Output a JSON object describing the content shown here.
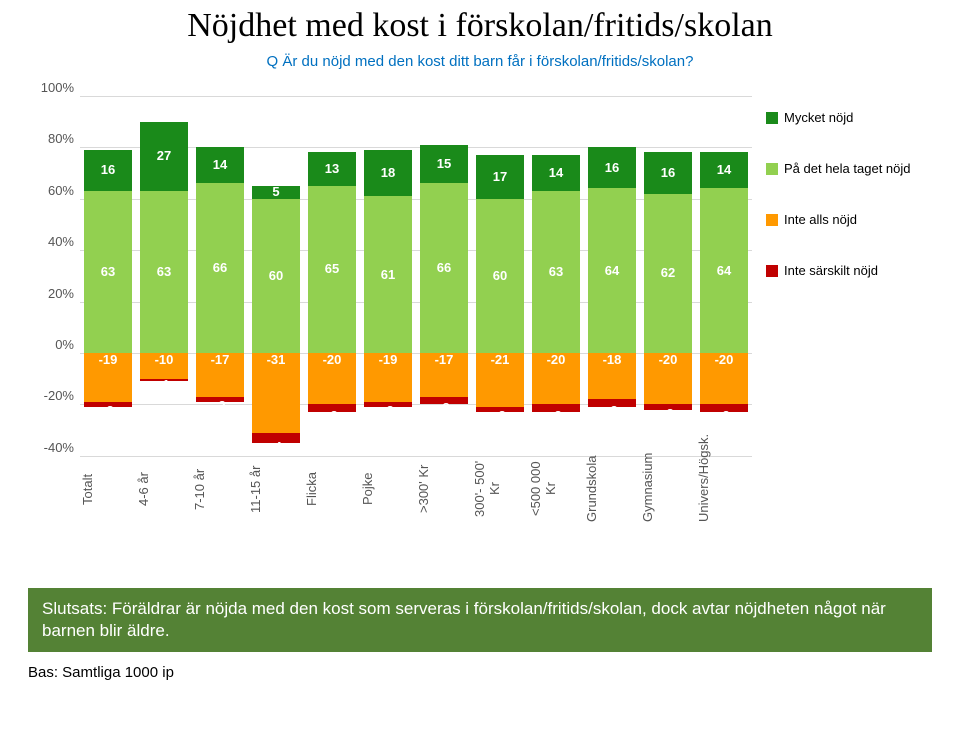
{
  "title": "Nöjdhet med kost i\nförskolan/fritids/skolan",
  "subtitle": "Q Är du nöjd med den kost ditt barn får i förskolan/fritids/skolan?",
  "chart": {
    "type": "stacked-bar-diverging",
    "ylim": [
      -40,
      100
    ],
    "yticks": [
      -40,
      -20,
      0,
      20,
      40,
      60,
      80,
      100
    ],
    "ytick_labels": [
      "-40%",
      "-20%",
      "0%",
      "20%",
      "40%",
      "60%",
      "80%",
      "100%"
    ],
    "grid_color": "#d9d9d9",
    "categories": [
      "Totalt",
      "4-6 år",
      "7-10 år",
      "11-15 år",
      "Flicka",
      "Pojke",
      ">300' Kr",
      "300'- 500' Kr",
      "<500 000 Kr",
      "Grundskola",
      "Gymnasium",
      "Univers/Högsk."
    ],
    "series": [
      {
        "name": "Mycket nöjd",
        "color": "#1a8a1a",
        "pos": "top",
        "values": [
          16,
          27,
          14,
          5,
          13,
          18,
          15,
          17,
          14,
          16,
          16,
          14
        ]
      },
      {
        "name": "På det hela taget nöjd",
        "color": "#92d050",
        "pos": "top",
        "values": [
          63,
          63,
          66,
          60,
          65,
          61,
          66,
          60,
          63,
          64,
          62,
          64
        ]
      },
      {
        "name": "Inte alls nöjd",
        "color": "#ff9900",
        "pos": "bottom",
        "values": [
          -19,
          -10,
          -17,
          -31,
          -20,
          -19,
          -17,
          -21,
          -20,
          -18,
          -20,
          -20
        ]
      },
      {
        "name": "Inte särskilt nöjd",
        "color": "#c00000",
        "pos": "bottom",
        "values": [
          -2,
          -1,
          -2,
          -4,
          -3,
          -2,
          -3,
          -2,
          -3,
          -3,
          -2,
          -3
        ]
      }
    ]
  },
  "legend": [
    {
      "label": "Mycket nöjd",
      "color": "#1a8a1a"
    },
    {
      "label": "På det hela taget nöjd",
      "color": "#92d050"
    },
    {
      "label": "Inte alls nöjd",
      "color": "#ff9900"
    },
    {
      "label": "Inte särskilt nöjd",
      "color": "#c00000"
    }
  ],
  "conclusion": "Slutsats: Föräldrar är nöjda med den kost som serveras i förskolan/fritids/skolan, dock avtar nöjdheten något när barnen blir äldre.",
  "base": "Bas: Samtliga 1000 ip"
}
